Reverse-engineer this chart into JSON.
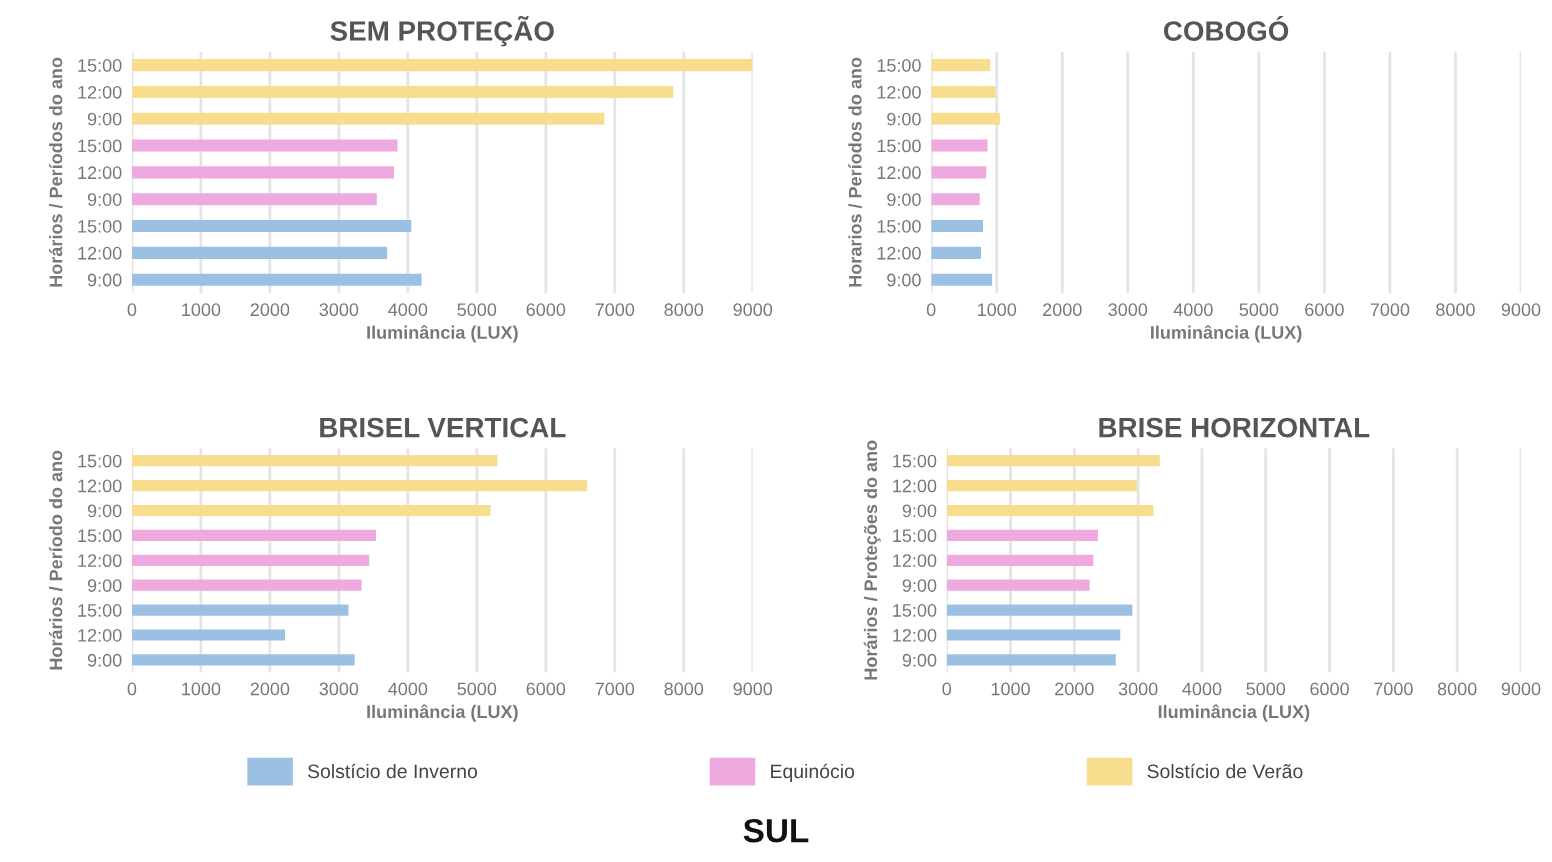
{
  "chart_data": [
    {
      "type": "bar",
      "orientation": "horizontal",
      "title": "SEM PROTEÇÃO",
      "xlabel": "Iluminância (LUX)",
      "ylabel": "Horários / Períodos do ano",
      "categories": [
        "15:00",
        "12:00",
        "9:00",
        "15:00",
        "12:00",
        "9:00",
        "15:00",
        "12:00",
        "9:00"
      ],
      "xlim": [
        0,
        9000
      ],
      "xticks": [
        0,
        1000,
        2000,
        3000,
        4000,
        5000,
        6000,
        7000,
        8000,
        9000
      ],
      "grid": "x",
      "legend": "bottom",
      "series": [
        {
          "name": "Solstício de Inverno",
          "color": "#9cc0e4",
          "values": [
            null,
            null,
            null,
            null,
            null,
            null,
            4050,
            3700,
            4200
          ]
        },
        {
          "name": "Equinócio",
          "color": "#eeaadf",
          "values": [
            null,
            null,
            null,
            3850,
            3800,
            3550,
            null,
            null,
            null
          ]
        },
        {
          "name": "Solstício de Verão",
          "color": "#f8dd8f",
          "values": [
            9000,
            7850,
            6850,
            null,
            null,
            null,
            null,
            null,
            null
          ]
        }
      ]
    },
    {
      "type": "bar",
      "orientation": "horizontal",
      "title": "COBOGÓ",
      "xlabel": "Iluminância (LUX)",
      "ylabel": "Horarios / Períodos do ano",
      "categories": [
        "15:00",
        "12:00",
        "9:00",
        "15:00",
        "12:00",
        "9:00",
        "15:00",
        "12:00",
        "9:00"
      ],
      "xlim": [
        0,
        9000
      ],
      "xticks": [
        0,
        1000,
        2000,
        3000,
        4000,
        5000,
        6000,
        7000,
        8000,
        9000
      ],
      "grid": "x",
      "series": [
        {
          "color": "#9cc0e4",
          "values": [
            null,
            null,
            null,
            null,
            null,
            null,
            790,
            760,
            930
          ]
        },
        {
          "color": "#eeaadf",
          "values": [
            null,
            null,
            null,
            860,
            840,
            740,
            null,
            null,
            null
          ]
        },
        {
          "color": "#f8dd8f",
          "values": [
            900,
            980,
            1050,
            null,
            null,
            null,
            null,
            null,
            null
          ]
        }
      ]
    },
    {
      "type": "bar",
      "orientation": "horizontal",
      "title": "BRISEL VERTICAL",
      "xlabel": "Iluminância (LUX)",
      "ylabel": "Horários / Período do ano",
      "categories": [
        "15:00",
        "12:00",
        "9:00",
        "15:00",
        "12:00",
        "9:00",
        "15:00",
        "12:00",
        "9:00"
      ],
      "xlim": [
        0,
        9000
      ],
      "xticks": [
        0,
        1000,
        2000,
        3000,
        4000,
        5000,
        6000,
        7000,
        8000,
        9000
      ],
      "grid": "x",
      "series": [
        {
          "color": "#9cc0e4",
          "values": [
            null,
            null,
            null,
            null,
            null,
            null,
            3140,
            2220,
            3230
          ]
        },
        {
          "color": "#eeaadf",
          "values": [
            null,
            null,
            null,
            3540,
            3440,
            3330,
            null,
            null,
            null
          ]
        },
        {
          "color": "#f8dd8f",
          "values": [
            5300,
            6600,
            5200,
            null,
            null,
            null,
            null,
            null,
            null
          ]
        }
      ]
    },
    {
      "type": "bar",
      "orientation": "horizontal",
      "title": "BRISE HORIZONTAL",
      "xlabel": "Iluminância (LUX)",
      "ylabel": "Horários / Proteções do ano",
      "categories": [
        "15:00",
        "12:00",
        "9:00",
        "15:00",
        "12:00",
        "9:00",
        "15:00",
        "12:00",
        "9:00"
      ],
      "xlim": [
        0,
        9000
      ],
      "xticks": [
        0,
        1000,
        2000,
        3000,
        4000,
        5000,
        6000,
        7000,
        8000,
        9000
      ],
      "grid": "x",
      "annotations": [
        "SUL"
      ],
      "series": [
        {
          "color": "#9cc0e4",
          "values": [
            null,
            null,
            null,
            null,
            null,
            null,
            2910,
            2720,
            2650
          ]
        },
        {
          "color": "#eeaadf",
          "values": [
            null,
            null,
            null,
            2370,
            2300,
            2240,
            null,
            null,
            null
          ]
        },
        {
          "color": "#f8dd8f",
          "values": [
            3340,
            2980,
            3240,
            null,
            null,
            null,
            null,
            null,
            null
          ]
        }
      ]
    }
  ]
}
